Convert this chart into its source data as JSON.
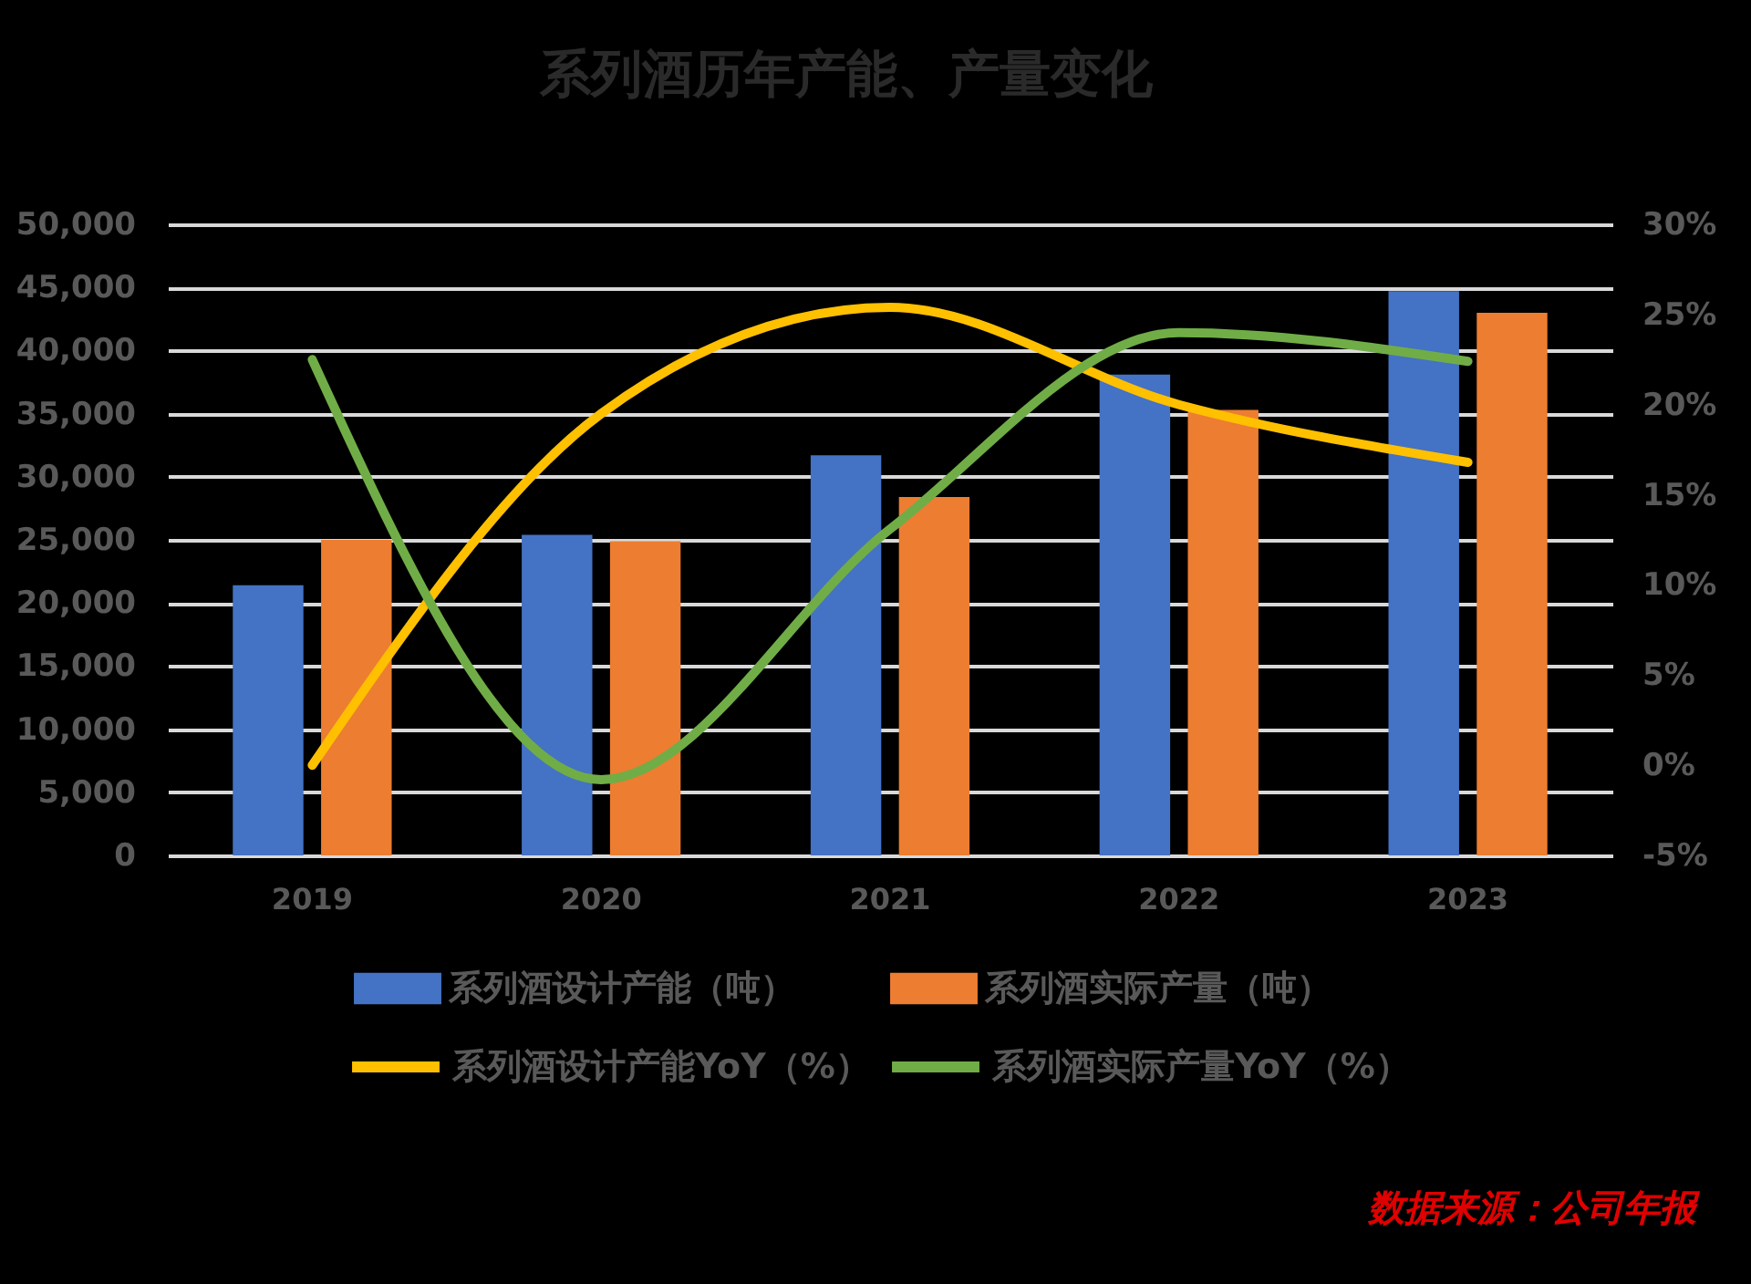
{
  "chart_data": {
    "type": "bar",
    "title": "系列酒历年产能、产量变化",
    "categories": [
      "2019",
      "2020",
      "2021",
      "2022",
      "2023"
    ],
    "series": [
      {
        "name": "系列酒设计产能（吨）",
        "color": "#4472c4",
        "values": [
          21400,
          25400,
          31700,
          38100,
          44700
        ]
      },
      {
        "name": "系列酒实际产量（吨）",
        "color": "#ed7d31",
        "values": [
          25000,
          24900,
          28400,
          35300,
          43000
        ]
      },
      {
        "name": "系列酒设计产能YoY（%）",
        "type": "line",
        "axis": "y2",
        "color": "#ffc000",
        "values": [
          0.0,
          19.5,
          25.4,
          20.0,
          16.8
        ]
      },
      {
        "name": "系列酒实际产量YoY（%）",
        "type": "line",
        "axis": "y2",
        "color": "#70ad47",
        "values": [
          22.5,
          -0.8,
          13.1,
          24.0,
          22.4
        ]
      }
    ],
    "ylim": [
      0,
      50000
    ],
    "yticks": [
      0,
      {
        "value": 5000,
        "label": "5,000"
      },
      {
        "value": 10000,
        "label": "10,000"
      },
      {
        "value": 15000,
        "label": "15,000"
      },
      {
        "value": 20000,
        "label": "20,000"
      },
      {
        "value": 25000,
        "label": "25,000"
      },
      {
        "value": 30000,
        "label": "30,000"
      },
      {
        "value": 35000,
        "label": "35,000"
      },
      {
        "value": 40000,
        "label": "40,000"
      },
      {
        "value": 45000,
        "label": "45,000"
      },
      {
        "value": 50000,
        "label": "50,000"
      }
    ],
    "y2lim": [
      -5,
      30
    ],
    "y2ticks": [
      {
        "value": -5,
        "label": "-5%"
      },
      {
        "value": 0,
        "label": "0%"
      },
      {
        "value": 5,
        "label": "5%"
      },
      {
        "value": 10,
        "label": "10%"
      },
      {
        "value": 15,
        "label": "15%"
      },
      {
        "value": 20,
        "label": "20%"
      },
      {
        "value": 25,
        "label": "25%"
      },
      {
        "value": 30,
        "label": "30%"
      }
    ],
    "grid": "y",
    "legend": "bottom",
    "annotations": [
      "数据来源：公司年报"
    ]
  }
}
